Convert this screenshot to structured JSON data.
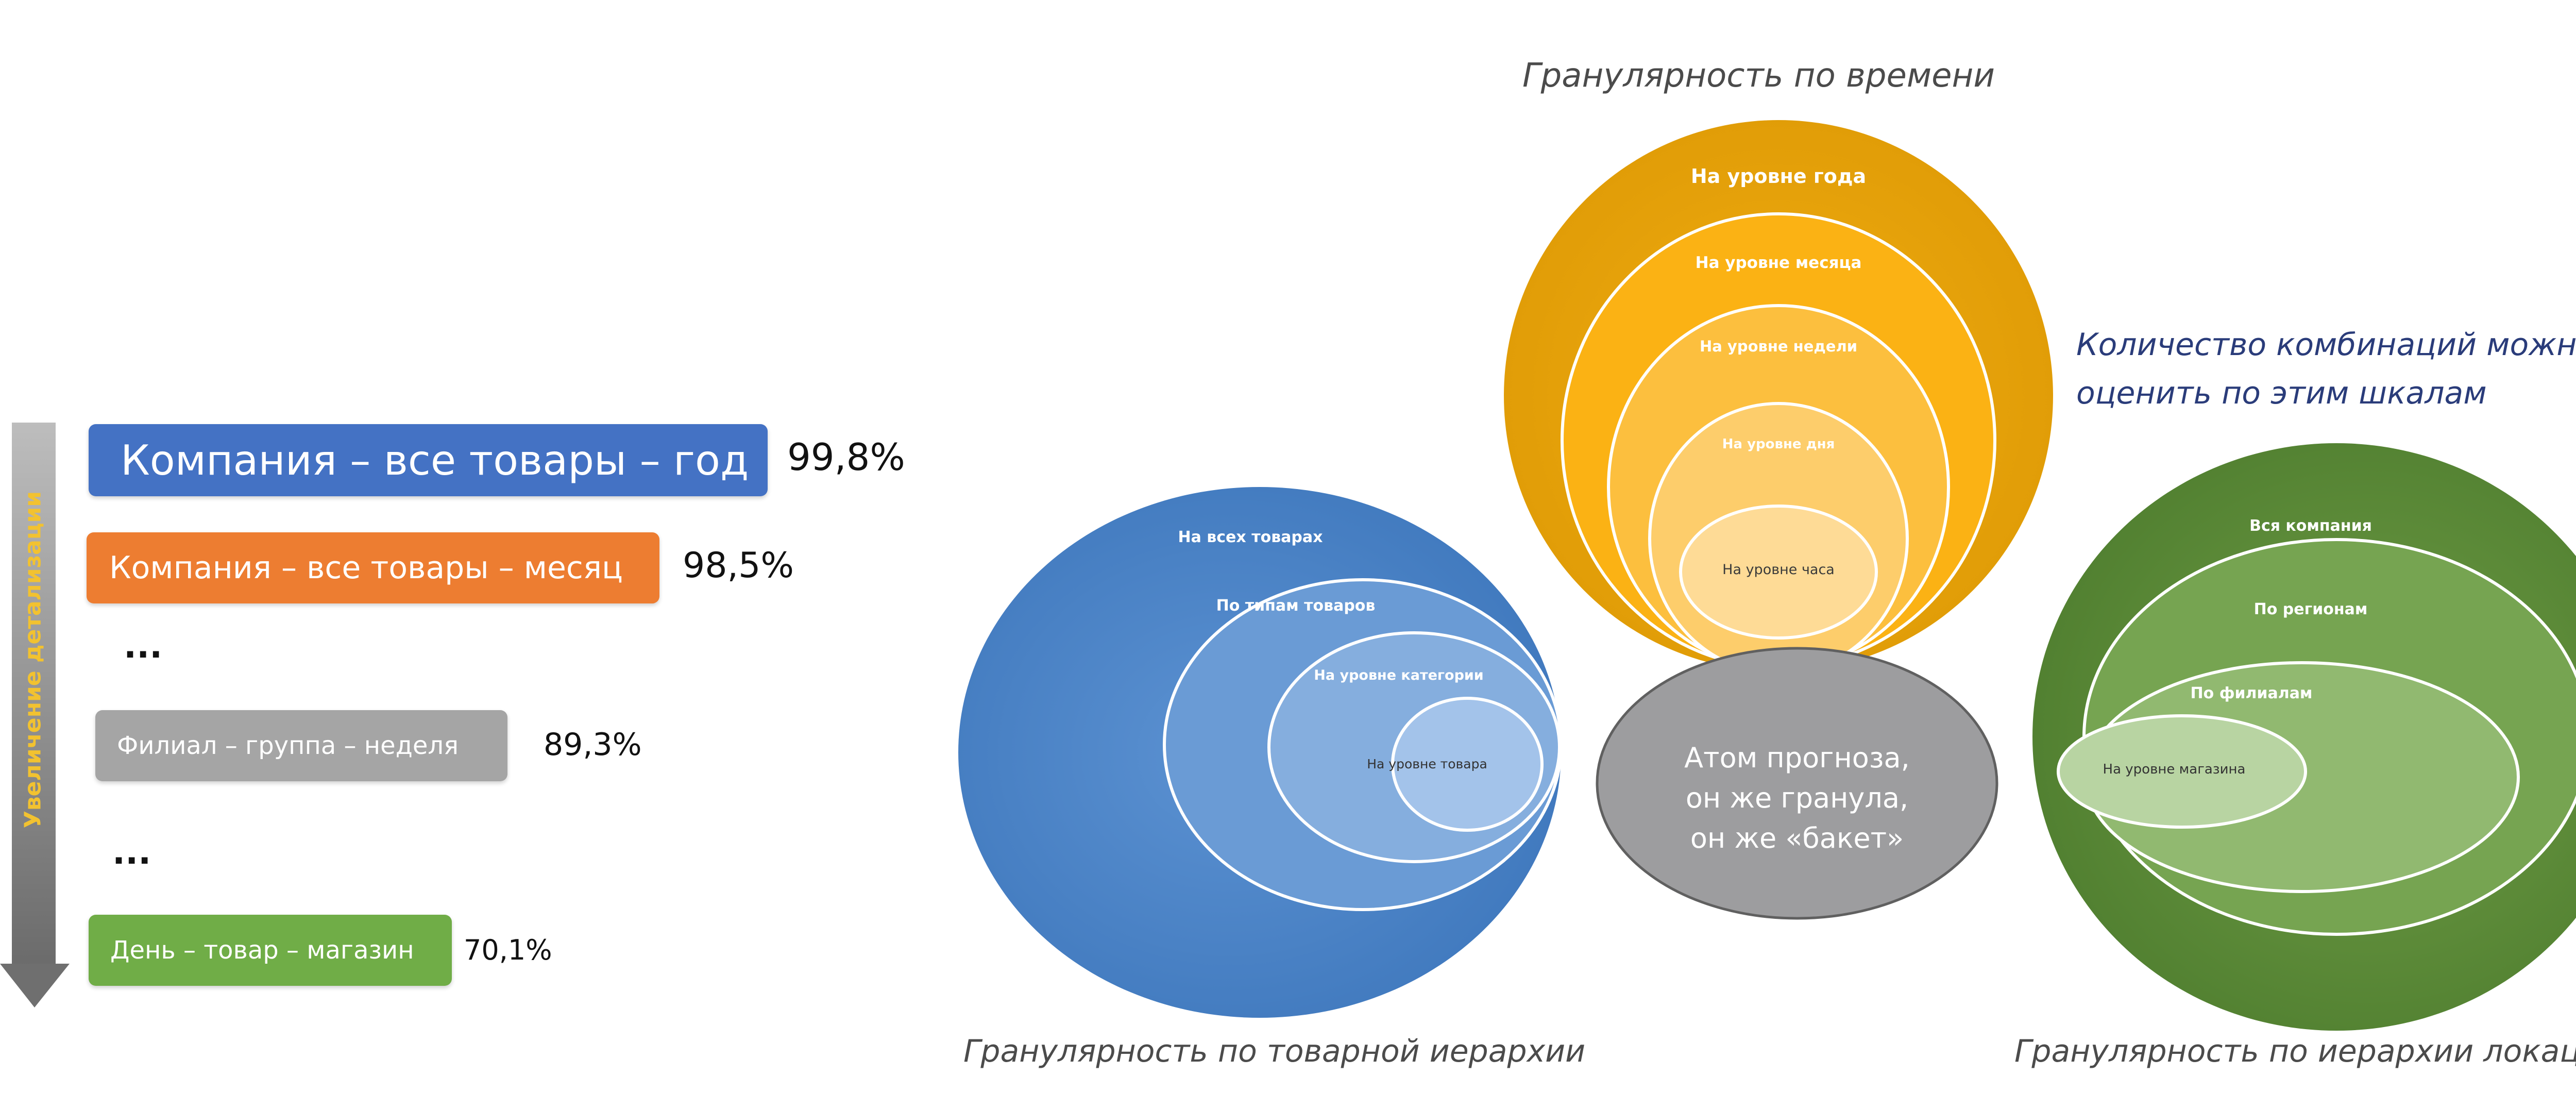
{
  "detail_scale": {
    "axis_label": "Увеличение детализации",
    "levels": [
      {
        "label": "Компания – все товары – год",
        "percent": "99,8%",
        "color": "#4472c4"
      },
      {
        "label": "Компания – все товары – месяц",
        "percent": "98,5%",
        "color": "#ed7d31"
      },
      {
        "label": "...",
        "percent": ""
      },
      {
        "label": "Филиал – группа – неделя",
        "percent": "89,3%",
        "color": "#a5a5a5"
      },
      {
        "label": "...",
        "percent": ""
      },
      {
        "label": "День  –  товар – магазин",
        "percent": "70,1%",
        "color": "#70ad47"
      }
    ]
  },
  "time_granularity": {
    "caption": "Гранулярность по времени",
    "levels": [
      "На уровне года",
      "На уровне месяца",
      "На уровне недели",
      "На уровне дня",
      "На уровне часа"
    ],
    "color": "#e6a10a"
  },
  "product_granularity": {
    "caption": "Гранулярность по товарной иерархии",
    "levels": [
      "На всех товарах",
      "По типам товаров",
      "На уровне категории",
      "На уровне товара"
    ],
    "color": "#4a82c4"
  },
  "location_granularity": {
    "caption": "Гранулярность по иерархии локаций",
    "levels": [
      "Вся компания",
      "По регионам",
      "По филиалам",
      "На уровне магазина"
    ],
    "color": "#5e8f3a"
  },
  "atom": {
    "lines": [
      "Атом прогноза,",
      "он же гранула,",
      "он же «бакет»"
    ],
    "color": "#9d9d9f"
  },
  "combinations_note": {
    "lines": [
      "Количество комбинаций можно",
      "оценить по этим шкалам"
    ],
    "color": "#2a3c7a"
  }
}
